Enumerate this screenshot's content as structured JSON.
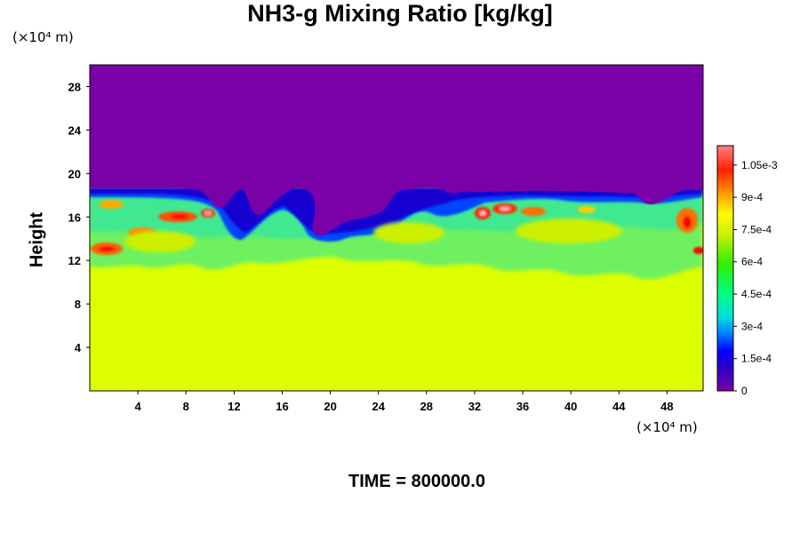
{
  "chart_data": {
    "type": "heatmap",
    "title": "NH3-g Mixing Ratio [kg/kg]",
    "ylabel": "Height",
    "x_unit": "(×10⁴ m)",
    "y_unit": "(×10⁴ m)",
    "x_ticks": [
      "4",
      "8",
      "12",
      "16",
      "20",
      "24",
      "28",
      "32",
      "36",
      "40",
      "44",
      "48"
    ],
    "y_ticks": [
      "4",
      "8",
      "12",
      "16",
      "20",
      "24",
      "28"
    ],
    "xlim": [
      0,
      51
    ],
    "ylim": [
      0,
      30
    ],
    "colorbar": {
      "ticks": [
        "0",
        "1.5e-4",
        "3e-4",
        "4.5e-4",
        "6e-4",
        "7.5e-4",
        "9e-4",
        "1.05e-3"
      ],
      "tick_values": [
        0,
        0.00015,
        0.0003,
        0.00045,
        0.0006,
        0.00075,
        0.0009,
        0.00105
      ],
      "range": [
        0,
        0.00114
      ]
    },
    "levels": {
      "top_value": 0,
      "bottom_value": 0.00078,
      "boundary_height": 17.5,
      "mixed_layer_bottom": 11
    }
  },
  "footer": {
    "time_label": "TIME = 800000.0"
  }
}
